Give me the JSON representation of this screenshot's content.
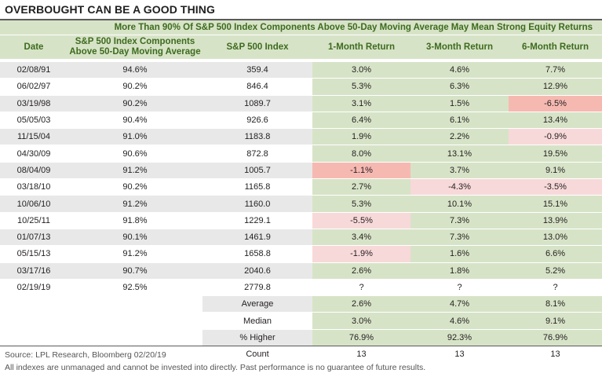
{
  "title": "OVERBOUGHT CAN BE A GOOD THING",
  "chart_data": {
    "type": "table",
    "title": "More Than 90% Of S&P 500 Index Components Above 50-Day Moving Average May Mean Strong Equity Returns",
    "columns": [
      "Date",
      "S&P 500 Index Components Above 50-Day Moving Average",
      "S&P 500 Index",
      "1-Month Return",
      "3-Month Return",
      "6-Month Return"
    ],
    "rows": [
      {
        "date": "02/08/91",
        "pct": "94.6%",
        "index": "359.4",
        "r1": "3.0%",
        "r3": "4.6%",
        "r6": "7.7%",
        "c1": "green",
        "c3": "green",
        "c6": "green"
      },
      {
        "date": "06/02/97",
        "pct": "90.2%",
        "index": "846.4",
        "r1": "5.3%",
        "r3": "6.3%",
        "r6": "12.9%",
        "c1": "green",
        "c3": "green",
        "c6": "green"
      },
      {
        "date": "03/19/98",
        "pct": "90.2%",
        "index": "1089.7",
        "r1": "3.1%",
        "r3": "1.5%",
        "r6": "-6.5%",
        "c1": "green",
        "c3": "green",
        "c6": "red"
      },
      {
        "date": "05/05/03",
        "pct": "90.4%",
        "index": "926.6",
        "r1": "6.4%",
        "r3": "6.1%",
        "r6": "13.4%",
        "c1": "green",
        "c3": "green",
        "c6": "green"
      },
      {
        "date": "11/15/04",
        "pct": "91.0%",
        "index": "1183.8",
        "r1": "1.9%",
        "r3": "2.2%",
        "r6": "-0.9%",
        "c1": "green",
        "c3": "green",
        "c6": "pink"
      },
      {
        "date": "04/30/09",
        "pct": "90.6%",
        "index": "872.8",
        "r1": "8.0%",
        "r3": "13.1%",
        "r6": "19.5%",
        "c1": "green",
        "c3": "green",
        "c6": "green"
      },
      {
        "date": "08/04/09",
        "pct": "91.2%",
        "index": "1005.7",
        "r1": "-1.1%",
        "r3": "3.7%",
        "r6": "9.1%",
        "c1": "red",
        "c3": "green",
        "c6": "green"
      },
      {
        "date": "03/18/10",
        "pct": "90.2%",
        "index": "1165.8",
        "r1": "2.7%",
        "r3": "-4.3%",
        "r6": "-3.5%",
        "c1": "green",
        "c3": "pink",
        "c6": "pink"
      },
      {
        "date": "10/06/10",
        "pct": "91.2%",
        "index": "1160.0",
        "r1": "5.3%",
        "r3": "10.1%",
        "r6": "15.1%",
        "c1": "green",
        "c3": "green",
        "c6": "green"
      },
      {
        "date": "10/25/11",
        "pct": "91.8%",
        "index": "1229.1",
        "r1": "-5.5%",
        "r3": "7.3%",
        "r6": "13.9%",
        "c1": "pink",
        "c3": "green",
        "c6": "green"
      },
      {
        "date": "01/07/13",
        "pct": "90.1%",
        "index": "1461.9",
        "r1": "3.4%",
        "r3": "7.3%",
        "r6": "13.0%",
        "c1": "green",
        "c3": "green",
        "c6": "green"
      },
      {
        "date": "05/15/13",
        "pct": "91.2%",
        "index": "1658.8",
        "r1": "-1.9%",
        "r3": "1.6%",
        "r6": "6.6%",
        "c1": "pink",
        "c3": "green",
        "c6": "green"
      },
      {
        "date": "03/17/16",
        "pct": "90.7%",
        "index": "2040.6",
        "r1": "2.6%",
        "r3": "1.8%",
        "r6": "5.2%",
        "c1": "green",
        "c3": "green",
        "c6": "green"
      },
      {
        "date": "02/19/19",
        "pct": "92.5%",
        "index": "2779.8",
        "r1": "?",
        "r3": "?",
        "r6": "?",
        "c1": "plain",
        "c3": "plain",
        "c6": "plain"
      }
    ],
    "summary": [
      {
        "label": "Average",
        "r1": "2.6%",
        "r3": "4.7%",
        "r6": "8.1%",
        "c1": "green",
        "c3": "green",
        "c6": "green"
      },
      {
        "label": "Median",
        "r1": "3.0%",
        "r3": "4.6%",
        "r6": "9.1%",
        "c1": "green",
        "c3": "green",
        "c6": "green"
      },
      {
        "label": "% Higher",
        "r1": "76.9%",
        "r3": "92.3%",
        "r6": "76.9%",
        "c1": "green",
        "c3": "green",
        "c6": "green"
      },
      {
        "label": "Count",
        "r1": "13",
        "r3": "13",
        "r6": "13",
        "c1": "plain",
        "c3": "plain",
        "c6": "plain"
      }
    ],
    "colors": {
      "green": "#d7e3c7",
      "pink": "#f8d9d9",
      "red": "#f6b9b1",
      "header_text": "#3d6b1e"
    }
  },
  "source": "Source: LPL Research, Bloomberg   02/20/19",
  "disclaimer": "All indexes are unmanaged and cannot be invested into directly. Past performance is no guarantee of future results."
}
